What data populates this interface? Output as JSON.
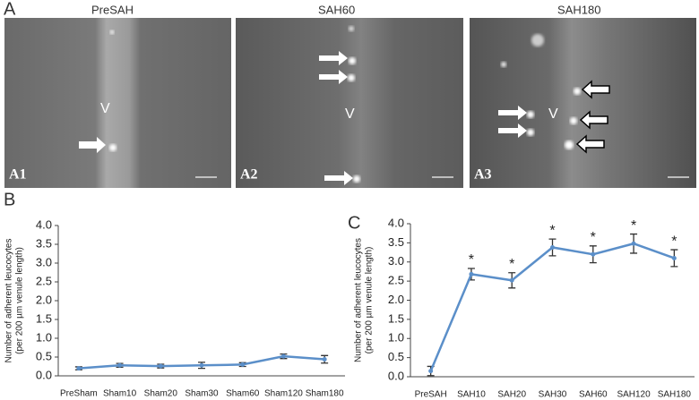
{
  "figure": {
    "panel_labels": [
      "A",
      "B",
      "C"
    ],
    "images": [
      {
        "title": "PreSAH",
        "label": "A1",
        "vessel": "V"
      },
      {
        "title": "SAH60",
        "label": "A2",
        "vessel": "V"
      },
      {
        "title": "SAH180",
        "label": "A3",
        "vessel": "V"
      }
    ]
  },
  "chart_data": [
    {
      "type": "line",
      "y_label": [
        "Number of adherent leucocytes",
        "(per 200 µm venule length)"
      ],
      "categories": [
        "PreSham",
        "Sham10",
        "Sham20",
        "Sham30",
        "Sham60",
        "Sham120",
        "Sham180"
      ],
      "values": [
        0.2,
        0.28,
        0.26,
        0.28,
        0.3,
        0.52,
        0.44
      ],
      "errors": [
        0.04,
        0.05,
        0.05,
        0.08,
        0.05,
        0.06,
        0.1
      ],
      "color": "#5b8fc9",
      "ylim": [
        0,
        4
      ],
      "yticks": [
        {
          "value": 0,
          "label": "0.0"
        },
        0.5,
        {
          "value": 1,
          "label": "1.0"
        },
        1.5,
        {
          "value": 2,
          "label": "2.0"
        },
        2.5,
        {
          "value": 3,
          "label": "3.0"
        },
        3.5,
        {
          "value": 4,
          "label": "4.0"
        }
      ]
    },
    {
      "type": "line",
      "y_label": [
        "Number of adherent leucocytes",
        "(per 200 µm venule length)"
      ],
      "categories": [
        "PreSAH",
        "SAH10",
        "SAH20",
        "SAH30",
        "SAH60",
        "SAH120",
        "SAH180"
      ],
      "values": [
        0.15,
        2.68,
        2.52,
        3.38,
        3.2,
        3.48,
        3.1
      ],
      "errors": [
        0.12,
        0.15,
        0.2,
        0.22,
        0.22,
        0.25,
        0.22
      ],
      "annotations": [
        null,
        "*",
        "*",
        "*",
        "*",
        "*",
        "*"
      ],
      "color": "#5b8fc9",
      "ylim": [
        0,
        4
      ],
      "yticks": [
        {
          "value": 0,
          "label": "0.0"
        },
        0.5,
        {
          "value": 1,
          "label": "1.0"
        },
        1.5,
        {
          "value": 2,
          "label": "2.0"
        },
        2.5,
        {
          "value": 3,
          "label": "3.0"
        },
        3.5,
        {
          "value": 4,
          "label": "4.0"
        }
      ]
    }
  ]
}
